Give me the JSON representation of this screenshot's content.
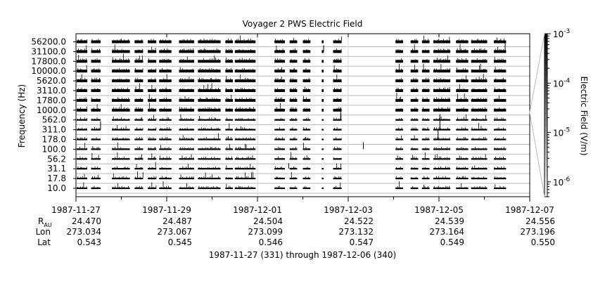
{
  "chart_data": {
    "type": "line",
    "title": "Voyager 2 PWS Electric Field",
    "ylabel": "Frequency (Hz)",
    "zlabel": "Electric Field (V/m)",
    "x_range": [
      "1987-11-27",
      "1987-12-07"
    ],
    "x_ticks": [
      "1987-11-27",
      "1987-11-29",
      "1987-12-01",
      "1987-12-03",
      "1987-12-05",
      "1987-12-07"
    ],
    "frequency_channels": [
      "56200.0",
      "31100.0",
      "17800.0",
      "10000.0",
      "5620.0",
      "3110.0",
      "1780.0",
      "1000.0",
      "562.0",
      "311.0",
      "178.0",
      "100.0",
      "56.2",
      "31.1",
      "17.8",
      "10.0"
    ],
    "z_scale": "log",
    "z_range": [
      5e-07,
      0.001
    ],
    "z_ticks": [
      {
        "base": "10",
        "exp": "-3",
        "value": 0.001
      },
      {
        "base": "10",
        "exp": "-4",
        "value": 0.0001
      },
      {
        "base": "10",
        "exp": "-5",
        "value": 1e-05
      },
      {
        "base": "10",
        "exp": "-6",
        "value": 1e-06
      }
    ],
    "data_intervals": [
      [
        "1987-11-27T00:20",
        "1987-11-27T06:00"
      ],
      [
        "1987-11-27T08:00",
        "1987-11-27T13:00"
      ],
      [
        "1987-11-27T19:00",
        "1987-11-28T04:30"
      ],
      [
        "1987-11-28T07:00",
        "1987-11-28T11:30"
      ],
      [
        "1987-11-28T14:00",
        "1987-11-28T18:30"
      ],
      [
        "1987-11-28T20:00",
        "1987-11-29T02:30"
      ],
      [
        "1987-11-29T06:30",
        "1987-11-29T14:30"
      ],
      [
        "1987-11-29T16:30",
        "1987-11-30T04:30"
      ],
      [
        "1987-11-30T07:00",
        "1987-11-30T11:00"
      ],
      [
        "1987-11-30T12:00",
        "1987-11-30T23:00"
      ],
      [
        "1987-12-01T09:00",
        "1987-12-01T14:30"
      ],
      [
        "1987-12-01T17:00",
        "1987-12-01T21:00"
      ],
      [
        "1987-12-02T00:00",
        "1987-12-02T04:00"
      ],
      [
        "1987-12-02T10:00",
        "1987-12-02T11:00"
      ],
      [
        "1987-12-02T16:00",
        "1987-12-02T20:30"
      ],
      [
        "1987-12-04T01:00",
        "1987-12-04T05:00"
      ],
      [
        "1987-12-04T09:00",
        "1987-12-04T13:00"
      ],
      [
        "1987-12-04T15:00",
        "1987-12-04T19:00"
      ],
      [
        "1987-12-04T21:00",
        "1987-12-05T06:00"
      ],
      [
        "1987-12-05T09:00",
        "1987-12-05T15:30"
      ],
      [
        "1987-12-05T17:00",
        "1987-12-06T01:30"
      ],
      [
        "1987-12-06T05:00",
        "1987-12-06T11:30"
      ]
    ],
    "ephemeris": {
      "labels": {
        "r": "R",
        "r_sub": "AU",
        "lon": "Lon",
        "lat": "Lat"
      },
      "r": [
        "24.470",
        "24.487",
        "24.504",
        "24.522",
        "24.539",
        "24.556"
      ],
      "lon": [
        "273.034",
        "273.067",
        "273.099",
        "273.132",
        "273.164",
        "273.196"
      ],
      "lat": [
        "0.543",
        "0.545",
        "0.546",
        "0.547",
        "0.549",
        "0.550"
      ]
    },
    "footer": "1987-11-27 (331) through 1987-12-06 (340)"
  }
}
